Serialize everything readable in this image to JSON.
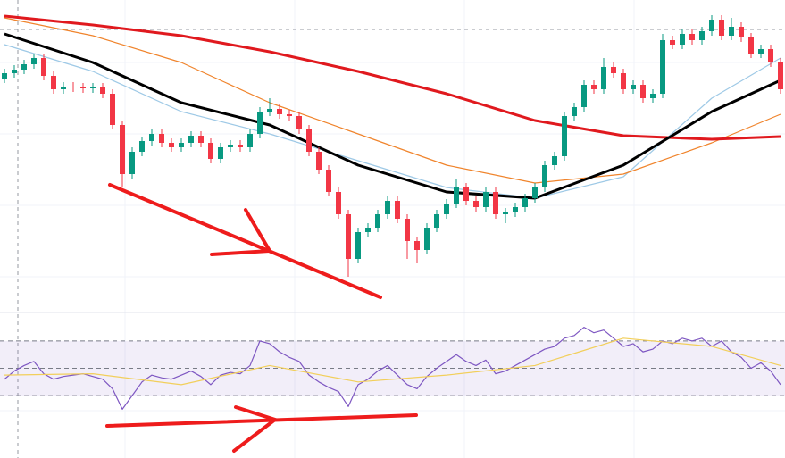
{
  "chart_data": [
    {
      "type": "candlestick",
      "ylim": [
        0,
        350
      ],
      "up_color": "#089981",
      "down_color": "#f23645",
      "open": [
        262,
        268,
        272,
        278,
        285,
        265,
        250,
        253,
        252,
        251,
        252,
        245,
        210,
        155,
        180,
        192,
        200,
        190,
        185,
        190,
        198,
        190,
        172,
        185,
        188,
        185,
        200,
        225,
        228,
        222,
        220,
        205,
        180,
        160,
        135,
        110,
        60,
        90,
        95,
        110,
        125,
        105,
        80,
        70,
        95,
        110,
        122,
        140,
        125,
        118,
        135,
        110,
        112,
        118,
        128,
        140,
        165,
        175,
        220,
        230,
        255,
        250,
        275,
        268,
        250,
        255,
        240,
        245,
        305,
        300,
        312,
        305,
        315,
        328,
        310,
        320,
        308,
        290,
        295,
        280
      ],
      "high": [
        273,
        277,
        283,
        290,
        290,
        270,
        258,
        258,
        257,
        257,
        257,
        250,
        215,
        185,
        197,
        205,
        205,
        195,
        195,
        203,
        203,
        195,
        190,
        193,
        193,
        205,
        230,
        240,
        233,
        227,
        225,
        210,
        185,
        165,
        140,
        115,
        95,
        100,
        115,
        130,
        130,
        110,
        85,
        100,
        115,
        127,
        150,
        145,
        130,
        140,
        140,
        117,
        123,
        133,
        145,
        170,
        180,
        225,
        235,
        260,
        260,
        285,
        280,
        273,
        260,
        260,
        250,
        312,
        310,
        317,
        317,
        320,
        333,
        333,
        330,
        325,
        313,
        300,
        300,
        285
      ],
      "low": [
        257,
        263,
        267,
        273,
        260,
        245,
        245,
        247,
        246,
        246,
        240,
        205,
        140,
        150,
        175,
        187,
        185,
        180,
        180,
        185,
        185,
        167,
        167,
        180,
        180,
        180,
        195,
        220,
        217,
        215,
        200,
        175,
        155,
        130,
        105,
        40,
        55,
        85,
        90,
        105,
        100,
        60,
        55,
        65,
        90,
        105,
        117,
        120,
        113,
        113,
        105,
        100,
        107,
        113,
        123,
        135,
        160,
        170,
        215,
        225,
        245,
        245,
        263,
        245,
        245,
        235,
        235,
        240,
        295,
        295,
        300,
        300,
        310,
        305,
        305,
        303,
        285,
        285,
        275,
        245
      ],
      "close": [
        268,
        272,
        278,
        285,
        265,
        250,
        253,
        252,
        251,
        252,
        245,
        210,
        155,
        180,
        192,
        200,
        190,
        185,
        190,
        198,
        190,
        172,
        185,
        188,
        185,
        200,
        225,
        228,
        222,
        220,
        205,
        180,
        160,
        135,
        110,
        60,
        90,
        95,
        110,
        125,
        105,
        80,
        70,
        95,
        110,
        122,
        140,
        125,
        118,
        135,
        110,
        112,
        118,
        128,
        140,
        165,
        175,
        220,
        230,
        255,
        250,
        275,
        268,
        250,
        255,
        240,
        245,
        305,
        300,
        312,
        305,
        315,
        328,
        310,
        320,
        308,
        290,
        295,
        280,
        250
      ],
      "series": [
        {
          "color": "#9ec9e6",
          "width": 1.2,
          "x": [
            0,
            9,
            18,
            27,
            36,
            45,
            54,
            63,
            72,
            79
          ],
          "values": [
            300,
            270,
            225,
            200,
            170,
            140,
            128,
            152,
            240,
            285
          ]
        },
        {
          "color": "#f0842c",
          "width": 1.2,
          "x": [
            0,
            9,
            18,
            27,
            36,
            45,
            54,
            63,
            72,
            79
          ],
          "values": [
            330,
            310,
            280,
            235,
            200,
            165,
            145,
            155,
            190,
            222
          ]
        },
        {
          "color": "#e0191e",
          "width": 3,
          "x": [
            0,
            9,
            18,
            27,
            36,
            45,
            54,
            63,
            72,
            79
          ],
          "values": [
            332,
            322,
            310,
            292,
            270,
            245,
            215,
            198,
            194,
            197
          ]
        },
        {
          "color": "#000000",
          "width": 3,
          "x": [
            0,
            9,
            18,
            27,
            36,
            45,
            54,
            63,
            72,
            79
          ],
          "values": [
            312,
            280,
            235,
            210,
            165,
            135,
            128,
            165,
            225,
            260
          ]
        }
      ]
    },
    {
      "type": "line",
      "ylim": [
        0,
        100
      ],
      "levels": [
        70,
        50,
        30
      ],
      "series": [
        {
          "color": "#7e57c2",
          "values": [
            42,
            48,
            52,
            55,
            46,
            42,
            44,
            45,
            46,
            44,
            42,
            35,
            20,
            30,
            40,
            45,
            43,
            42,
            45,
            48,
            44,
            38,
            45,
            47,
            46,
            52,
            70,
            68,
            62,
            58,
            55,
            45,
            40,
            36,
            33,
            22,
            38,
            42,
            48,
            52,
            45,
            38,
            35,
            44,
            50,
            55,
            60,
            55,
            52,
            56,
            46,
            48,
            52,
            56,
            60,
            64,
            66,
            72,
            74,
            80,
            76,
            78,
            72,
            66,
            68,
            62,
            64,
            70,
            68,
            72,
            70,
            72,
            66,
            70,
            62,
            58,
            50,
            54,
            48,
            38
          ]
        },
        {
          "color": "#f2cf5b",
          "x": [
            0,
            9,
            18,
            27,
            36,
            45,
            54,
            63,
            72,
            79
          ],
          "values": [
            45,
            46,
            38,
            52,
            40,
            45,
            52,
            72,
            66,
            52
          ]
        }
      ]
    }
  ]
}
